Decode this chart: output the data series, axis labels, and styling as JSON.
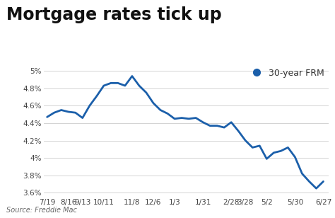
{
  "title": "Mortgage rates tick up",
  "subtitle": "Source: Freddie Mac",
  "legend_label": "30-year FRM",
  "x_labels": [
    "7/19",
    "8/16",
    "9/13",
    "10/11",
    "11/8",
    "12/6",
    "1/3",
    "1/31",
    "2/28",
    "3/28",
    "5/2",
    "5/30",
    "6/27"
  ],
  "y_vals": [
    4.47,
    4.52,
    4.55,
    4.53,
    4.52,
    4.46,
    4.6,
    4.71,
    4.83,
    4.86,
    4.86,
    4.83,
    4.94,
    4.83,
    4.75,
    4.63,
    4.55,
    4.51,
    4.45,
    4.46,
    4.45,
    4.46,
    4.41,
    4.37,
    4.37,
    4.35,
    4.41,
    4.31,
    4.2,
    4.12,
    4.14,
    3.99,
    4.06,
    4.08,
    4.12,
    4.01,
    3.82,
    3.73,
    3.65,
    3.73
  ],
  "x_tick_indices": [
    0,
    3,
    5,
    8,
    12,
    15,
    18,
    22,
    26,
    28,
    31,
    35,
    39
  ],
  "ylim": [
    3.55,
    5.08
  ],
  "yticks": [
    3.6,
    3.8,
    4.0,
    4.2,
    4.4,
    4.6,
    4.8,
    5.0
  ],
  "ytick_labels": [
    "3.6%",
    "3.8%",
    "4%",
    "4.2%",
    "4.4%",
    "4.6%",
    "4.8%",
    "5%"
  ],
  "line_color": "#1b5faa",
  "dot_color": "#1b5faa",
  "background_color": "#ffffff",
  "grid_color": "#cccccc",
  "title_fontsize": 17,
  "axis_fontsize": 7.5,
  "legend_fontsize": 9,
  "source_fontsize": 7
}
